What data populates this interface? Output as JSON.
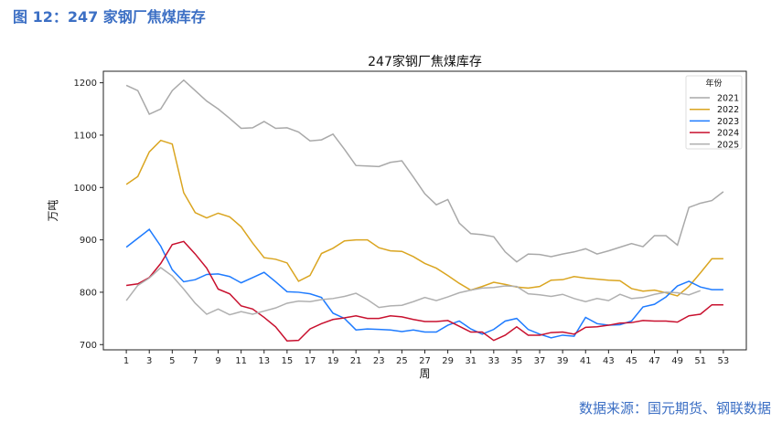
{
  "figure_title": "图 12：247 家钢厂焦煤库存",
  "source": "数据来源：国元期货、钢联数据",
  "chart_data": {
    "type": "line",
    "title": "247家钢厂焦煤库存",
    "xlabel": "周",
    "ylabel": "万吨",
    "xlim": [
      -1,
      55
    ],
    "ylim": [
      690,
      1222
    ],
    "xticks": [
      1,
      3,
      5,
      7,
      9,
      11,
      13,
      15,
      17,
      19,
      21,
      23,
      25,
      27,
      29,
      31,
      33,
      35,
      37,
      39,
      41,
      43,
      45,
      47,
      49,
      51,
      53
    ],
    "yticks": [
      700,
      800,
      900,
      1000,
      1100,
      1200
    ],
    "grid": false,
    "legend": {
      "title": "年份",
      "placement": "top-right"
    },
    "series": [
      {
        "name": "2021",
        "color": "#a9a9a9",
        "values": [
          1195,
          1185,
          1140,
          1150,
          1185,
          1205,
          1185,
          1165,
          1150,
          1132,
          1113,
          1114,
          1126,
          1113,
          1114,
          1106,
          1089,
          1091,
          1102,
          1073,
          1042,
          1041,
          1040,
          1048,
          1051,
          1020,
          988,
          967,
          977,
          932,
          912,
          910,
          906,
          877,
          858,
          873,
          872,
          868,
          873,
          877,
          883,
          873,
          879,
          886,
          893,
          887,
          908,
          908,
          890,
          962,
          970,
          975,
          992
        ]
      },
      {
        "name": "2022",
        "color": "#daa520",
        "values": [
          1006,
          1021,
          1068,
          1090,
          1083,
          990,
          952,
          942,
          951,
          944,
          925,
          894,
          866,
          863,
          856,
          821,
          832,
          874,
          884,
          898,
          900,
          900,
          885,
          879,
          878,
          868,
          855,
          846,
          832,
          817,
          804,
          811,
          819,
          815,
          810,
          808,
          811,
          823,
          824,
          830,
          827,
          825,
          823,
          822,
          807,
          802,
          804,
          799,
          793,
          811,
          837,
          864,
          864
        ]
      },
      {
        "name": "2023",
        "color": "#1e7bff",
        "values": [
          886,
          903,
          920,
          888,
          843,
          820,
          824,
          834,
          835,
          830,
          818,
          828,
          838,
          820,
          801,
          800,
          797,
          790,
          760,
          750,
          728,
          730,
          729,
          728,
          725,
          728,
          724,
          724,
          737,
          745,
          730,
          720,
          729,
          745,
          750,
          729,
          720,
          713,
          718,
          716,
          752,
          740,
          737,
          738,
          745,
          772,
          777,
          791,
          812,
          821,
          810,
          805,
          805
        ]
      },
      {
        "name": "2024",
        "color": "#c8102e",
        "values": [
          813,
          816,
          828,
          855,
          891,
          897,
          873,
          846,
          806,
          797,
          774,
          768,
          752,
          734,
          707,
          708,
          730,
          740,
          748,
          751,
          755,
          750,
          750,
          755,
          753,
          748,
          744,
          744,
          746,
          735,
          724,
          724,
          708,
          718,
          734,
          718,
          718,
          723,
          724,
          720,
          733,
          734,
          737,
          741,
          742,
          746,
          745,
          745,
          743,
          755,
          758,
          776,
          776
        ]
      },
      {
        "name": "2025",
        "color": "#b0b0b0",
        "values": [
          784,
          813,
          827,
          847,
          831,
          806,
          779,
          758,
          768,
          757,
          763,
          758,
          764,
          770,
          779,
          783,
          782,
          786,
          788,
          792,
          798,
          786,
          771,
          774,
          775,
          782,
          790,
          784,
          791,
          799,
          804,
          808,
          809,
          812,
          811,
          797,
          795,
          792,
          796,
          788,
          782,
          788,
          784,
          796,
          788,
          790,
          796,
          800,
          799,
          795,
          803
        ]
      }
    ]
  }
}
